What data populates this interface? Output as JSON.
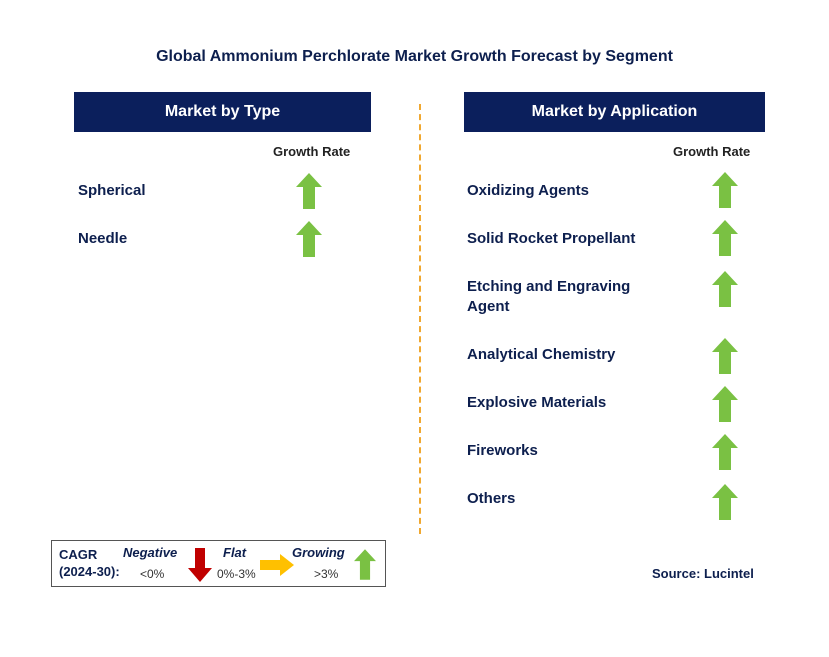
{
  "title": "Global Ammonium Perchlorate Market Growth Forecast by Segment",
  "colors": {
    "header_bg": "#0b1f5c",
    "growing": "#7ac143",
    "negative": "#c00000",
    "flat": "#ffc000",
    "divider": "#f0a830"
  },
  "left_panel": {
    "header": "Market by Type",
    "growth_label": "Growth Rate",
    "rows": [
      {
        "label": "Spherical",
        "trend": "growing"
      },
      {
        "label": "Needle",
        "trend": "growing"
      }
    ]
  },
  "right_panel": {
    "header": "Market by Application",
    "growth_label": "Growth Rate",
    "rows": [
      {
        "label": "Oxidizing Agents",
        "trend": "growing"
      },
      {
        "label": "Solid Rocket Propellant",
        "trend": "growing"
      },
      {
        "label": "Etching and Engraving Agent",
        "trend": "growing"
      },
      {
        "label": "Analytical Chemistry",
        "trend": "growing"
      },
      {
        "label": "Explosive Materials",
        "trend": "growing"
      },
      {
        "label": "Fireworks",
        "trend": "growing"
      },
      {
        "label": "Others",
        "trend": "growing"
      }
    ]
  },
  "legend": {
    "cagr_line1": "CAGR",
    "cagr_line2": "(2024-30):",
    "negative_label": "Negative",
    "negative_range": "<0%",
    "flat_label": "Flat",
    "flat_range": "0%-3%",
    "growing_label": "Growing",
    "growing_range": ">3%"
  },
  "source": "Source: Lucintel"
}
